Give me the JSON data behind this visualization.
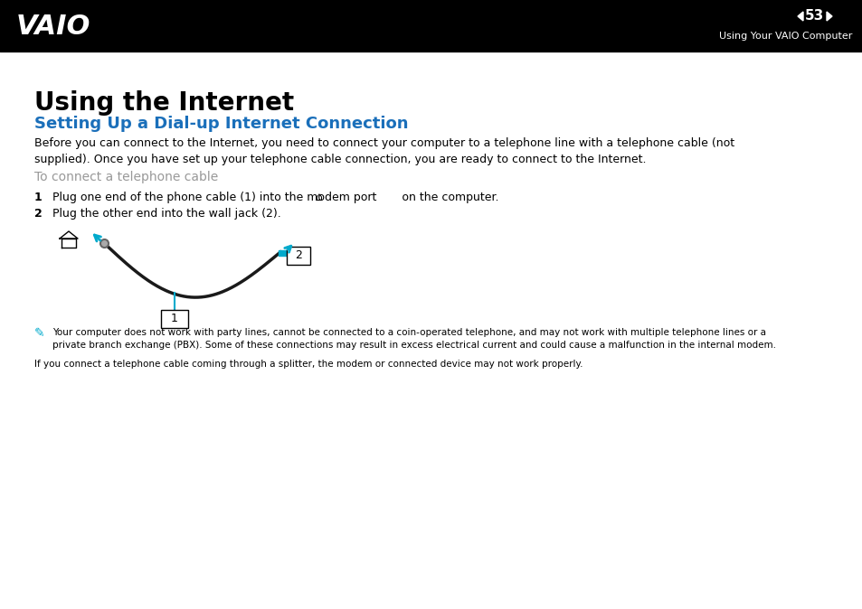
{
  "header_bg": "#000000",
  "header_text_color": "#ffffff",
  "header_page_num": "53",
  "header_subtitle": "Using Your VAIO Computer",
  "page_bg": "#ffffff",
  "title": "Using the Internet",
  "title_fontsize": 20,
  "title_color": "#000000",
  "section_title": "Setting Up a Dial-up Internet Connection",
  "section_title_color": "#1a6fba",
  "section_title_fontsize": 13,
  "body_text_color": "#000000",
  "body_fontsize": 9,
  "gray_subtitle_color": "#999999",
  "gray_subtitle": "To connect a telephone cable",
  "gray_subtitle_fontsize": 10,
  "body_para": "Before you can connect to the Internet, you need to connect your computer to a telephone line with a telephone cable (not\nsupplied). Once you have set up your telephone cable connection, you are ready to connect to the Internet.",
  "step1": "Plug one end of the phone cable (1) into the modem port       on the computer.",
  "step2": "Plug the other end into the wall jack (2).",
  "note_text": "Your computer does not work with party lines, cannot be connected to a coin-operated telephone, and may not work with multiple telephone lines or a\nprivate branch exchange (PBX). Some of these connections may result in excess electrical current and could cause a malfunction in the internal modem.",
  "note_text2": "If you connect a telephone cable coming through a splitter, the modem or connected device may not work properly.",
  "cable_color": "#1a1a1a",
  "arrow_color": "#00aacc"
}
